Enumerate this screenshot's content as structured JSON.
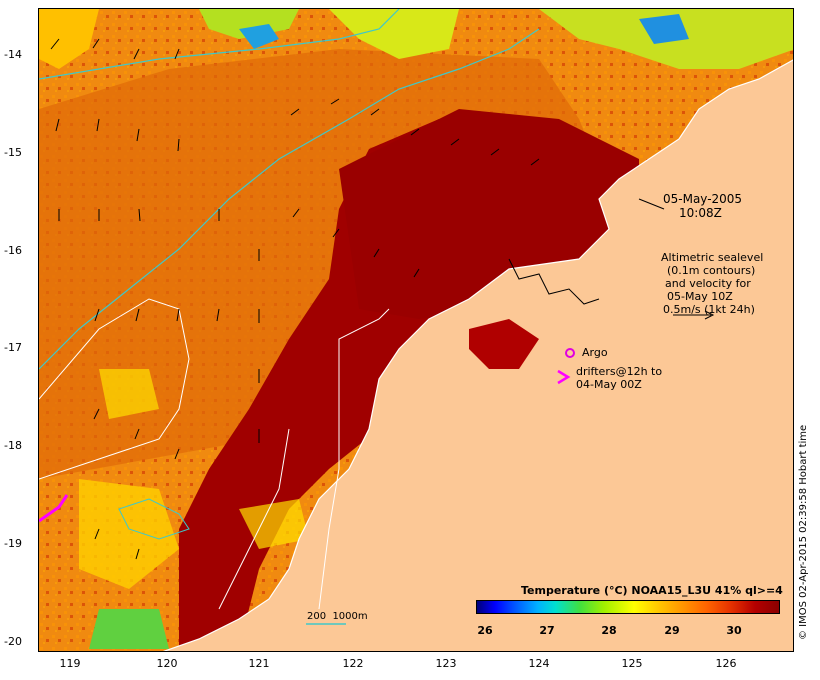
{
  "map": {
    "date_label": "05-May-2005",
    "time_label": "10:08Z",
    "altimetry_lines": [
      "Altimetric sealevel",
      "(0.1m contours)",
      "and velocity for",
      "05-May 10Z",
      "0.5m/s (1kt 24h)"
    ],
    "argo_label": "Argo",
    "drifters_lines": [
      "drifters@12h to",
      "04-May 00Z"
    ],
    "depth_label": "200  1000m",
    "credit": "© IMOS 02-Apr-2015 02:39:58 Hobart time",
    "latitudes": [
      "-14",
      "-15",
      "-16",
      "-17",
      "-18",
      "-19",
      "-20"
    ],
    "longitudes": [
      "119",
      "120",
      "121",
      "122",
      "123",
      "124",
      "125",
      "126"
    ],
    "colors": {
      "land": "#fcc896",
      "ocean_warm": "#a00000",
      "argo": "#e000e0",
      "drifter": "#ff00ff",
      "depth_contour": "#40c8c8",
      "sealevel_contour": "#ffffff"
    }
  },
  "colorbar": {
    "title": "Temperature (°C) NOAA15_L3U 41% ql>=4",
    "ticks": [
      "26",
      "27",
      "28",
      "29",
      "30"
    ],
    "range": [
      25.5,
      31
    ]
  }
}
